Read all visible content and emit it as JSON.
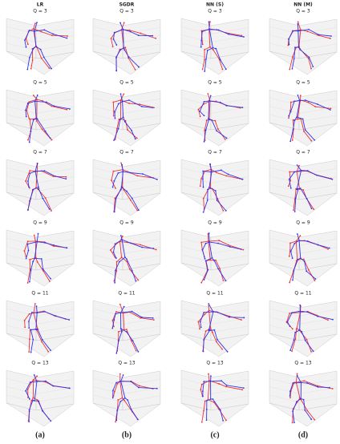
{
  "columns": [
    "LR",
    "SGDR",
    "NN (S)",
    "NN (M)"
  ],
  "rows": [
    "Q = 3",
    "Q = 5",
    "Q = 7",
    "Q = 9",
    "Q = 11",
    "Q = 13"
  ],
  "captions": [
    "(a)",
    "(b)",
    "(c)",
    "(d)"
  ]
}
